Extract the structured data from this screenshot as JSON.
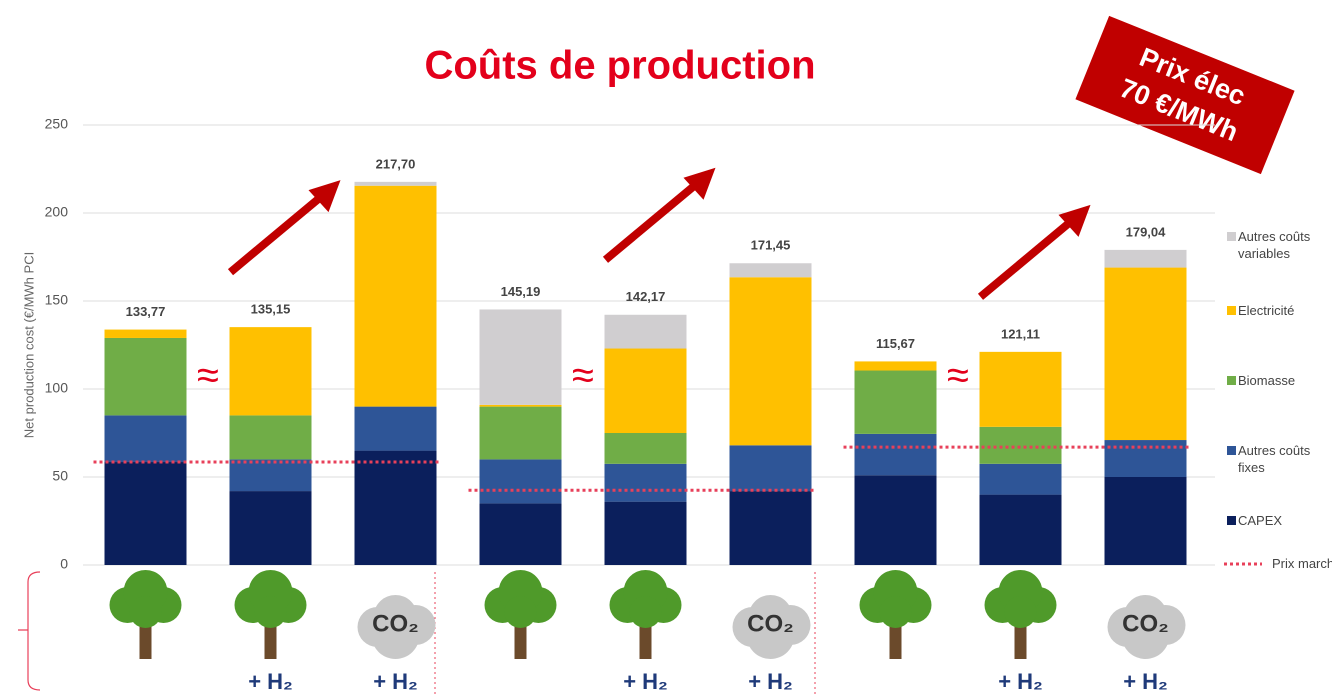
{
  "chart_data": {
    "type": "stacked_bar",
    "title": "Coûts de production",
    "badge": [
      "Prix élec",
      "70 €/MWh"
    ],
    "y_label": "Net production cost (€/MWh PCI",
    "categories": [
      null,
      "+ H₂",
      "+ H₂",
      null,
      "+ H₂",
      "+ H₂",
      null,
      "+ H₂",
      "+ H₂"
    ],
    "icons_co2_label": "CO₂",
    "approx_symbol": "≈",
    "ylim": [
      0,
      250
    ],
    "yticks": [
      0,
      50,
      100,
      150,
      200,
      250
    ],
    "grid": true,
    "series": [
      {
        "name": "CAPEX",
        "color": "#0b1f5c",
        "values": [
          58.5,
          42,
          65,
          35,
          36,
          42,
          51,
          40,
          50
        ]
      },
      {
        "name": "Autres coûts fixes",
        "color": "#2e5597",
        "values": [
          26.5,
          18,
          25,
          25,
          21.5,
          26,
          23.5,
          17.5,
          21
        ]
      },
      {
        "name": "Biomasse",
        "color": "#70ad47",
        "values": [
          44,
          25,
          0,
          30,
          17.5,
          0,
          36,
          21,
          0
        ]
      },
      {
        "name": "Electricité",
        "color": "#ffc000",
        "values": [
          4.77,
          50.15,
          125.5,
          1,
          48,
          95.5,
          5.17,
          42.61,
          98
        ]
      },
      {
        "name": "Autres coûts variables",
        "color": "#d0ced0",
        "values": [
          0,
          0,
          2.2,
          54.19,
          19.17,
          7.95,
          0,
          0,
          10.04
        ]
      }
    ],
    "totals": [
      133.77,
      135.15,
      217.7,
      145.19,
      142.17,
      171.45,
      115.67,
      121.11,
      179.04
    ],
    "total_labels": [
      "133,77",
      "135,15",
      "217,70",
      "145,19",
      "142,17",
      "171,45",
      "115,67",
      "121,11",
      "179,04"
    ],
    "market_price": {
      "name": "Prix marché",
      "color": "#e8405a",
      "values": [
        58.5,
        42.5,
        67
      ]
    }
  }
}
